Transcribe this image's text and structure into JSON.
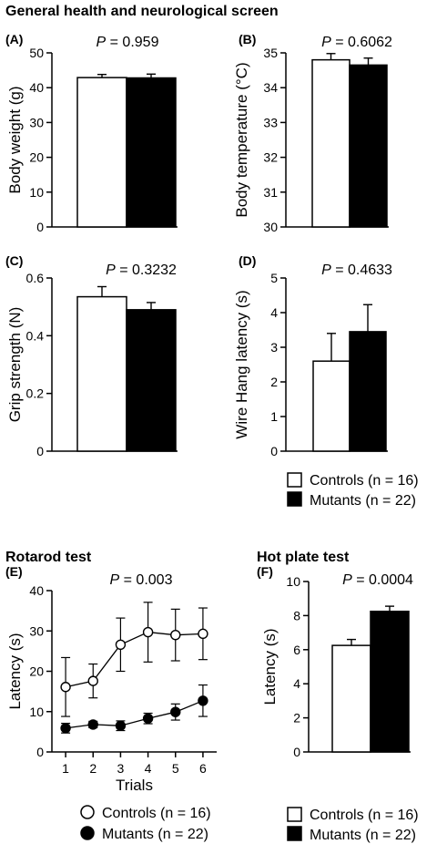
{
  "section_titles": {
    "general": "General health and neurological screen",
    "rotarod": "Rotarod test",
    "hotplate": "Hot plate test"
  },
  "legend": {
    "controls": "Controls (n = 16)",
    "mutants": "Mutants (n = 22)"
  },
  "colors": {
    "controls": "#ffffff",
    "mutants": "#000000",
    "axis": "#000000"
  },
  "chart_data": [
    {
      "id": "A",
      "panel_label": "(A)",
      "type": "bar",
      "p_italic": "P",
      "p_value": " = 0.959",
      "ylabel": "Body weight (g)",
      "ylim": [
        0,
        50
      ],
      "yticks": [
        "0",
        "10",
        "20",
        "30",
        "40",
        "50"
      ],
      "categories": [
        "Controls",
        "Mutants"
      ],
      "values": [
        42.9,
        42.8
      ],
      "errors": [
        0.9,
        1.1
      ]
    },
    {
      "id": "B",
      "panel_label": "(B)",
      "type": "bar",
      "p_italic": "P",
      "p_value": " = 0.6062",
      "ylabel": "Body temperature (°C)",
      "ylim": [
        30,
        35
      ],
      "yticks": [
        "30",
        "31",
        "32",
        "33",
        "34",
        "35"
      ],
      "categories": [
        "Controls",
        "Mutants"
      ],
      "values": [
        34.8,
        34.65
      ],
      "errors": [
        0.18,
        0.2
      ]
    },
    {
      "id": "C",
      "panel_label": "(C)",
      "type": "bar",
      "p_italic": "P",
      "p_value": " = 0.3232",
      "ylabel": "Grip strength (N)",
      "ylim": [
        0,
        0.6
      ],
      "yticks": [
        "0",
        "0.2",
        "0.4",
        "0.6"
      ],
      "categories": [
        "Controls",
        "Mutants"
      ],
      "values": [
        0.535,
        0.49
      ],
      "errors": [
        0.035,
        0.025
      ]
    },
    {
      "id": "D",
      "panel_label": "(D)",
      "type": "bar",
      "p_italic": "P",
      "p_value": " = 0.4633",
      "ylabel": "Wire Hang latency (s)",
      "ylim": [
        0,
        5
      ],
      "yticks": [
        "0",
        "1",
        "2",
        "3",
        "4",
        "5"
      ],
      "categories": [
        "Controls",
        "Mutants"
      ],
      "values": [
        2.6,
        3.45
      ],
      "errors": [
        0.8,
        0.78
      ]
    },
    {
      "id": "E",
      "panel_label": "(E)",
      "type": "line",
      "p_italic": "P",
      "p_value": " = 0.003",
      "ylabel": "Latency (s)",
      "xlabel": "Trials",
      "ylim": [
        0,
        40
      ],
      "xlim": [
        0.5,
        6.5
      ],
      "yticks": [
        "0",
        "10",
        "20",
        "30",
        "40"
      ],
      "x": [
        1,
        2,
        3,
        4,
        5,
        6
      ],
      "series": [
        {
          "name": "Controls (n = 16)",
          "values": [
            16.1,
            17.6,
            26.6,
            29.7,
            29.0,
            29.3
          ],
          "errors": [
            7.3,
            4.2,
            6.6,
            7.4,
            6.4,
            6.4
          ]
        },
        {
          "name": "Mutants (n = 22)",
          "values": [
            5.9,
            6.8,
            6.5,
            8.3,
            9.9,
            12.7
          ],
          "errors": [
            1.2,
            0.8,
            1.2,
            1.3,
            2.0,
            3.9
          ]
        }
      ]
    },
    {
      "id": "F",
      "panel_label": "(F)",
      "type": "bar",
      "p_italic": "P",
      "p_value": " = 0.0004",
      "ylabel": "Latency (s)",
      "ylim": [
        0,
        10
      ],
      "yticks": [
        "0",
        "2",
        "4",
        "6",
        "8",
        "10"
      ],
      "categories": [
        "Controls",
        "Mutants"
      ],
      "values": [
        6.25,
        8.25
      ],
      "errors": [
        0.35,
        0.3
      ]
    }
  ]
}
